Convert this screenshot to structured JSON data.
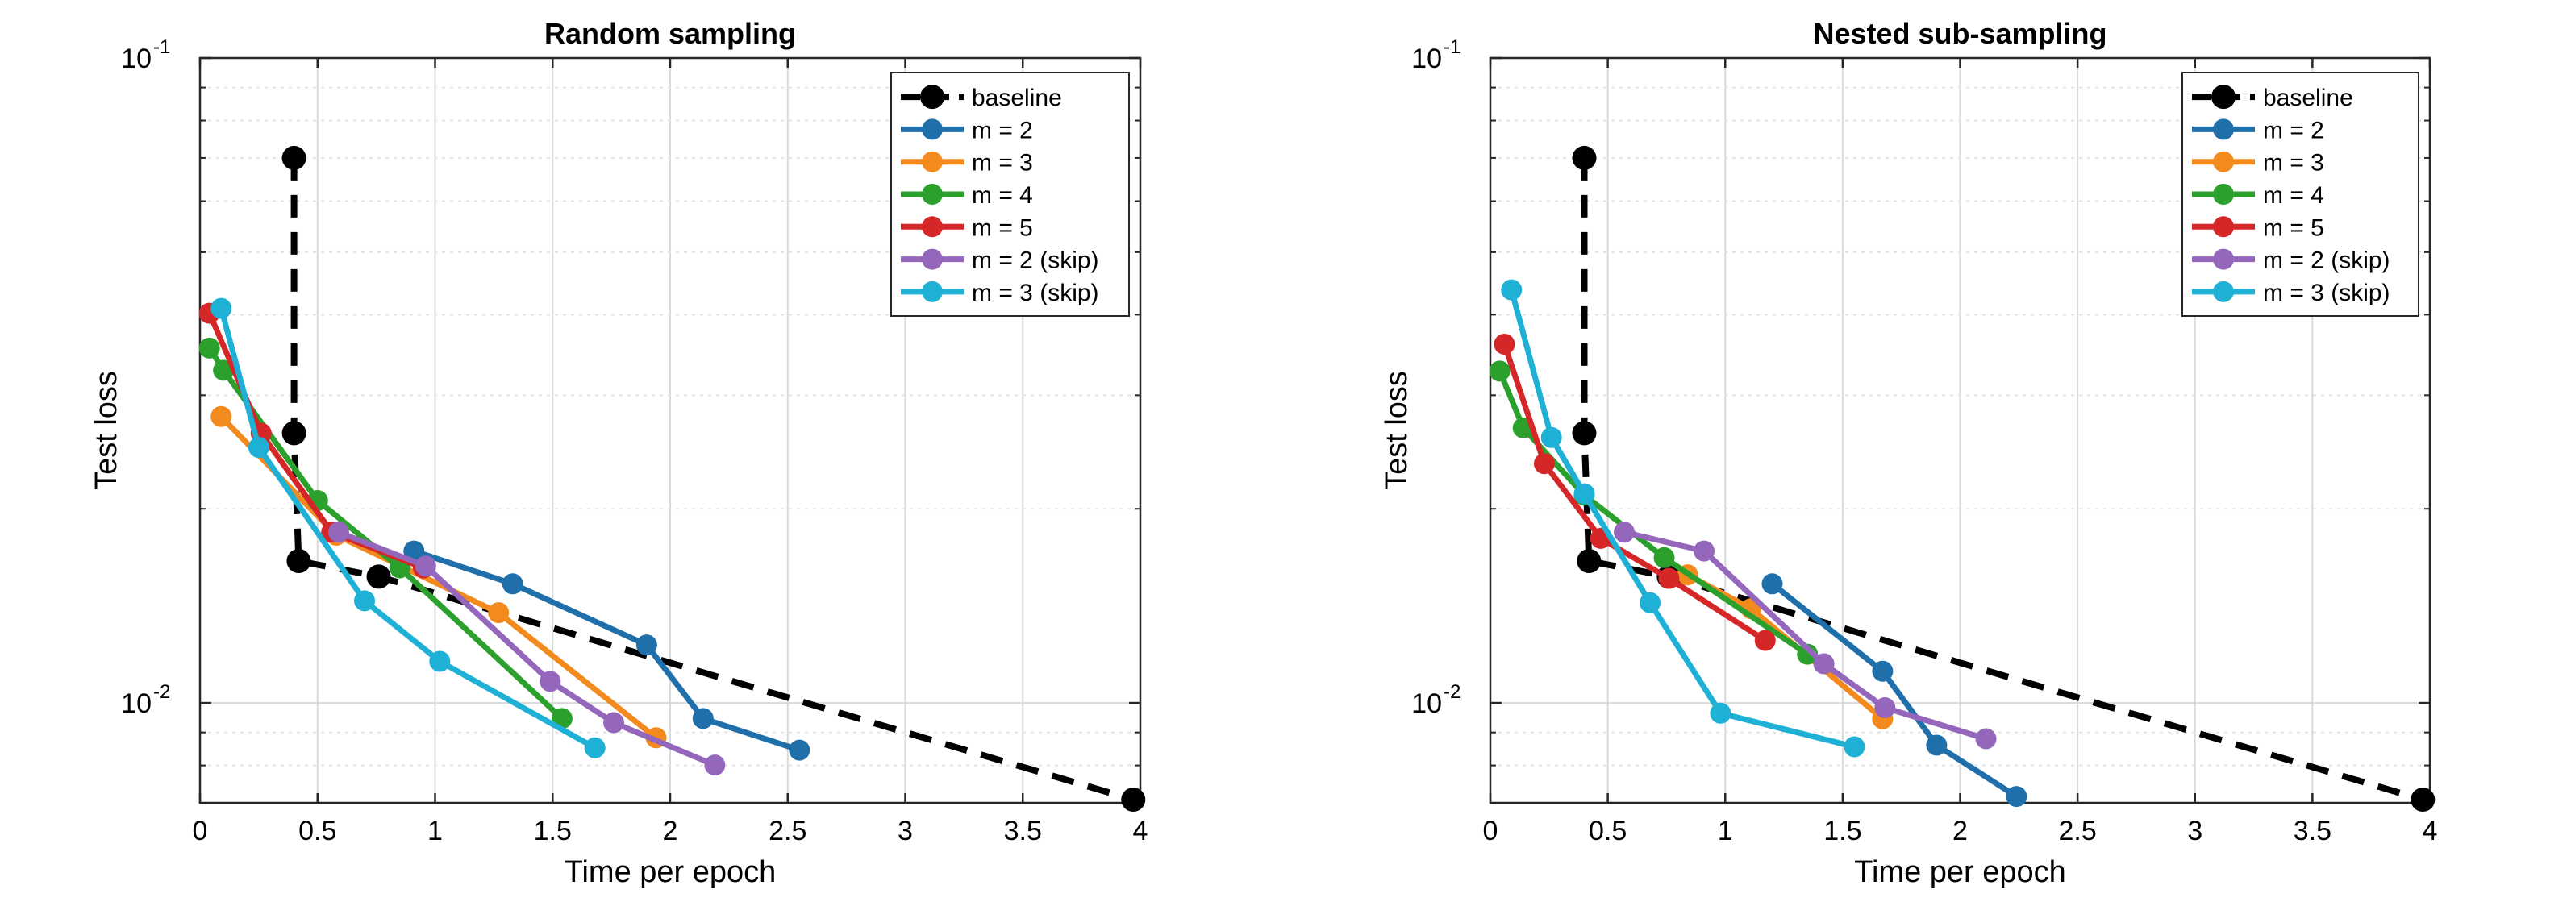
{
  "chart_data": [
    {
      "type": "line",
      "title": "Random sampling",
      "xlabel": "Time per epoch",
      "ylabel": "Test loss",
      "xlim": [
        0,
        4
      ],
      "ylim": [
        0.007,
        0.1
      ],
      "yscale": "log",
      "grid": true,
      "legend_position": "top-right",
      "x_ticks": [
        "0",
        "0.5",
        "1",
        "1.5",
        "2",
        "2.5",
        "3",
        "3.5",
        "4"
      ],
      "y_tick_bases": [
        "10",
        "10"
      ],
      "y_tick_exponents": [
        "-1",
        "-2"
      ],
      "series": [
        {
          "name": "baseline",
          "color": "#000000",
          "dashed": true,
          "x": [
            0.4,
            0.4,
            0.42,
            0.76,
            3.97
          ],
          "y": [
            0.07,
            0.0262,
            0.0166,
            0.0157,
            0.00708
          ]
        },
        {
          "name": "m = 2",
          "color": "#1f6fab",
          "x": [
            0.91,
            1.33,
            1.9,
            2.14,
            2.55
          ],
          "y": [
            0.0172,
            0.0153,
            0.0123,
            0.00946,
            0.00845
          ]
        },
        {
          "name": "m = 3",
          "color": "#f28a1e",
          "x": [
            0.09,
            0.58,
            1.27,
            1.94
          ],
          "y": [
            0.0278,
            0.0182,
            0.0138,
            0.00883
          ]
        },
        {
          "name": "m = 4",
          "color": "#2ca02c",
          "x": [
            0.04,
            0.1,
            0.5,
            0.85,
            1.54
          ],
          "y": [
            0.0355,
            0.0328,
            0.0206,
            0.0162,
            0.00946
          ]
        },
        {
          "name": "m = 5",
          "color": "#d62728",
          "x": [
            0.04,
            0.26,
            0.56,
            0.95
          ],
          "y": [
            0.0402,
            0.0262,
            0.0184,
            0.0162
          ]
        },
        {
          "name": "m = 2 (skip)",
          "color": "#9467bd",
          "x": [
            0.59,
            0.96,
            1.49,
            1.76,
            2.19
          ],
          "y": [
            0.0184,
            0.0163,
            0.0108,
            0.00932,
            0.00801
          ]
        },
        {
          "name": "m = 3 (skip)",
          "color": "#1fb0d6",
          "x": [
            0.09,
            0.25,
            0.7,
            1.02,
            1.68
          ],
          "y": [
            0.0409,
            0.0249,
            0.0144,
            0.0116,
            0.00852
          ]
        }
      ]
    },
    {
      "type": "line",
      "title": "Nested sub-sampling",
      "xlabel": "Time per epoch",
      "ylabel": "Test loss",
      "xlim": [
        0,
        4
      ],
      "ylim": [
        0.007,
        0.1
      ],
      "yscale": "log",
      "grid": true,
      "legend_position": "top-right",
      "x_ticks": [
        "0",
        "0.5",
        "1",
        "1.5",
        "2",
        "2.5",
        "3",
        "3.5",
        "4"
      ],
      "y_tick_bases": [
        "10",
        "10"
      ],
      "y_tick_exponents": [
        "-1",
        "-2"
      ],
      "series": [
        {
          "name": "baseline",
          "color": "#000000",
          "dashed": true,
          "x": [
            0.4,
            0.4,
            0.42,
            0.76,
            3.97
          ],
          "y": [
            0.07,
            0.0262,
            0.0166,
            0.0157,
            0.00708
          ]
        },
        {
          "name": "m = 2",
          "color": "#1f6fab",
          "x": [
            1.2,
            1.67,
            1.9,
            2.24
          ],
          "y": [
            0.0153,
            0.0112,
            0.0086,
            0.00716
          ]
        },
        {
          "name": "m = 3",
          "color": "#f28a1e",
          "x": [
            0.84,
            1.11,
            1.67
          ],
          "y": [
            0.0158,
            0.014,
            0.00945
          ]
        },
        {
          "name": "m = 4",
          "color": "#2ca02c",
          "x": [
            0.04,
            0.14,
            0.4,
            0.74,
            1.35
          ],
          "y": [
            0.0327,
            0.0267,
            0.021,
            0.0168,
            0.0119
          ]
        },
        {
          "name": "m = 5",
          "color": "#d62728",
          "x": [
            0.06,
            0.23,
            0.47,
            0.76,
            1.17
          ],
          "y": [
            0.036,
            0.0235,
            0.018,
            0.0156,
            0.0125
          ]
        },
        {
          "name": "m = 2 (skip)",
          "color": "#9467bd",
          "x": [
            0.57,
            0.91,
            1.42,
            1.68,
            2.11
          ],
          "y": [
            0.0184,
            0.0172,
            0.0115,
            0.00983,
            0.0088
          ]
        },
        {
          "name": "m = 3 (skip)",
          "color": "#1fb0d6",
          "x": [
            0.09,
            0.26,
            0.4,
            0.68,
            0.98,
            1.55
          ],
          "y": [
            0.0437,
            0.0258,
            0.0211,
            0.0143,
            0.00964,
            0.00855
          ]
        }
      ]
    }
  ]
}
